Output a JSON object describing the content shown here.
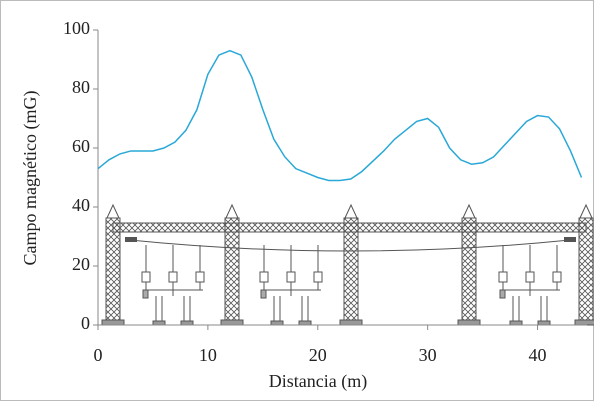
{
  "chart_data": {
    "type": "line",
    "xlabel": "Distancia (m)",
    "ylabel": "Campo magnético (mG)",
    "x": [
      0,
      1,
      2,
      3,
      4,
      5,
      6,
      7,
      8,
      9,
      10,
      11,
      12,
      13,
      14,
      15,
      16,
      17,
      18,
      19,
      20,
      21,
      22,
      23,
      24,
      25,
      26,
      27,
      28,
      29,
      30,
      31,
      32,
      33,
      34,
      35,
      36,
      37,
      38,
      39,
      40,
      41,
      42,
      43,
      44
    ],
    "series": [
      {
        "color": "#29a8d8",
        "values": [
          53,
          56,
          58,
          59,
          59,
          59,
          60,
          62,
          66,
          73,
          85,
          91.5,
          93,
          91.5,
          84,
          73,
          63,
          57,
          53,
          51.5,
          50,
          49,
          49,
          49.5,
          52,
          55.5,
          59,
          63,
          66,
          69,
          70,
          67,
          60,
          56,
          54.5,
          55,
          57,
          61,
          65,
          69,
          71,
          70.5,
          66.5,
          59,
          50
        ]
      }
    ],
    "xlim": [
      0,
      44.5
    ],
    "ylim": [
      0,
      100
    ],
    "xticks": [
      0,
      10,
      20,
      30,
      40
    ],
    "yticks": [
      0,
      20,
      40,
      60,
      80,
      100
    ]
  }
}
